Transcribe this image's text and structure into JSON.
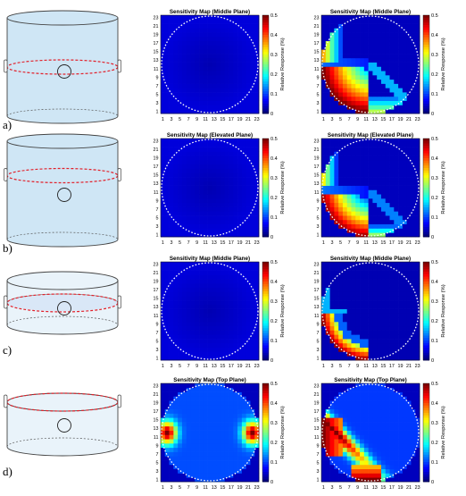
{
  "figure": {
    "colorbar": {
      "label": "Relative Response (%)",
      "ticks": [
        "0",
        "0.1",
        "0.2",
        "0.3",
        "0.4",
        "0.5"
      ]
    },
    "axis_ticks": [
      "1",
      "3",
      "5",
      "7",
      "9",
      "11",
      "13",
      "15",
      "17",
      "19",
      "21",
      "23"
    ],
    "rows": [
      {
        "letter": "a)",
        "tank": "tall",
        "ring_level": "middle",
        "maps": [
          {
            "title": "Sensitivity Map (Middle Plane)",
            "pattern": "uniform-low"
          },
          {
            "title": "Sensitivity Map (Middle Plane)",
            "pattern": "corner-strong"
          }
        ]
      },
      {
        "letter": "b)",
        "tank": "tall",
        "ring_level": "elevated",
        "maps": [
          {
            "title": "Sensitivity Map (Elevated Plane)",
            "pattern": "uniform-low"
          },
          {
            "title": "Sensitivity Map (Elevated Plane)",
            "pattern": "corner-medium"
          }
        ]
      },
      {
        "letter": "c)",
        "tank": "short",
        "ring_level": "middle",
        "maps": [
          {
            "title": "Sensitivity Map (Middle Plane)",
            "pattern": "uniform-low"
          },
          {
            "title": "Sensitivity Map (Middle Plane)",
            "pattern": "corner-thin"
          }
        ]
      },
      {
        "letter": "d)",
        "tank": "short",
        "ring_level": "top",
        "maps": [
          {
            "title": "Sensitivity Map (Top Plane)",
            "pattern": "side-lobes"
          },
          {
            "title": "Sensitivity Map (Top Plane)",
            "pattern": "diagonal-band"
          }
        ]
      }
    ]
  }
}
